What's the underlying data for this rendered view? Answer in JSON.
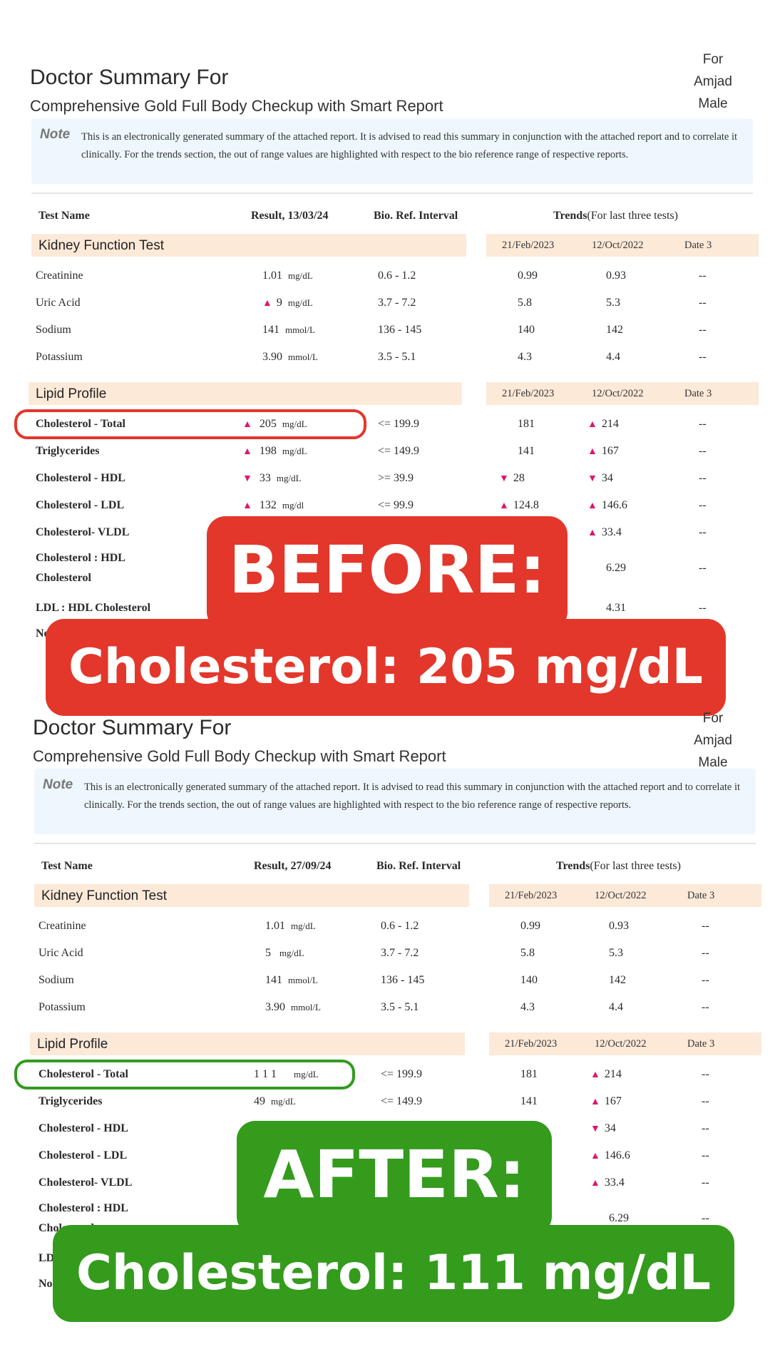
{
  "colors": {
    "before": "#e3372b",
    "after": "#349b1d",
    "flag": "#e0166b",
    "section_bg": "#fde9d8",
    "note_bg": "#eef7fd"
  },
  "before": {
    "title": "Doctor Summary For",
    "subtitle": "Comprehensive Gold Full Body Checkup with Smart Report",
    "patient": {
      "for": "For",
      "name": "Amjad",
      "gender": "Male"
    },
    "note_label": "Note",
    "note_text": "This is an electronically generated summary of the attached report. It is advised to read this summary in conjunction with the attached report and to correlate it clinically. For the trends section, the out of range values are highlighted with respect to the bio reference range of respective reports.",
    "headers": {
      "test_name": "Test Name",
      "result": "Result, 13/03/24",
      "ref": "Bio. Ref. Interval",
      "trends": "Trends",
      "trends_note": "(For last three tests)"
    },
    "kidney": {
      "label": "Kidney Function Test",
      "dates": [
        "21/Feb/2023",
        "12/Oct/2022",
        "Date 3"
      ],
      "rows": [
        {
          "name": "Creatinine",
          "value": "1.01",
          "unit": "mg/dL",
          "ref": "0.6 - 1.2",
          "t1": "0.99",
          "t2": "0.93",
          "t3": "--"
        },
        {
          "name": "Uric Acid",
          "value": "9",
          "unit": "mg/dL",
          "ref": "3.7 - 7.2",
          "t1": "5.8",
          "t2": "5.3",
          "t3": "--"
        },
        {
          "name": "Sodium",
          "value": "141",
          "unit": "mmol/L",
          "ref": "136 - 145",
          "t1": "140",
          "t2": "142",
          "t3": "--"
        },
        {
          "name": "Potassium",
          "value": "3.90",
          "unit": "mmol/L",
          "ref": "3.5 - 5.1",
          "t1": "4.3",
          "t2": "4.4",
          "t3": "--"
        }
      ]
    },
    "lipid": {
      "label": "Lipid Profile",
      "dates": [
        "21/Feb/2023",
        "12/Oct/2022",
        "Date 3"
      ],
      "rows": [
        {
          "name": "Cholesterol - Total",
          "value": "205",
          "unit": "mg/dL",
          "ref": "<= 199.9",
          "t1": "181",
          "t2": "214",
          "t3": "--"
        },
        {
          "name": "Triglycerides",
          "value": "198",
          "unit": "mg/dL",
          "ref": "<= 149.9",
          "t1": "141",
          "t2": "167",
          "t3": "--"
        },
        {
          "name": "Cholesterol - HDL",
          "value": "33",
          "unit": "mg/dL",
          "ref": ">= 39.9",
          "t1": "28",
          "t2": "34",
          "t3": "--"
        },
        {
          "name": "Cholesterol - LDL",
          "value": "132",
          "unit": "mg/dl",
          "ref": "<= 99.9",
          "t1": "124.8",
          "t2": "146.6",
          "t3": "--"
        },
        {
          "name": "Cholesterol- VLDL",
          "t2": "33.4",
          "t3": "--"
        },
        {
          "name_line1": "Cholesterol : HDL",
          "name_line2": "Cholesterol",
          "t2": "6.29",
          "t3": "--"
        },
        {
          "name": "LDL : HDL Cholesterol",
          "t2": "4.31",
          "t3": "--"
        },
        {
          "name": "No"
        }
      ]
    },
    "badge_top": "BEFORE:",
    "badge_bottom": "Cholesterol: 205 mg/dL"
  },
  "after": {
    "title": "Doctor Summary For",
    "subtitle": "Comprehensive Gold Full Body Checkup with Smart Report",
    "patient": {
      "for": "For",
      "name": "Amjad",
      "gender": "Male"
    },
    "note_label": "Note",
    "note_text": "This is an electronically generated summary of the attached report. It is advised to read this summary in conjunction with the attached report and to correlate it clinically. For the trends section, the out of range values are highlighted with respect to the bio reference range of respective reports.",
    "headers": {
      "test_name": "Test Name",
      "result": "Result, 27/09/24",
      "ref": "Bio. Ref. Interval",
      "trends": "Trends",
      "trends_note": "(For last three tests)"
    },
    "kidney": {
      "label": "Kidney Function Test",
      "dates": [
        "21/Feb/2023",
        "12/Oct/2022",
        "Date 3"
      ],
      "rows": [
        {
          "name": "Creatinine",
          "value": "1.01",
          "unit": "mg/dL",
          "ref": "0.6 - 1.2",
          "t1": "0.99",
          "t2": "0.93",
          "t3": "--"
        },
        {
          "name": "Uric Acid",
          "value": "5",
          "unit": "mg/dL",
          "ref": "3.7 - 7.2",
          "t1": "5.8",
          "t2": "5.3",
          "t3": "--"
        },
        {
          "name": "Sodium",
          "value": "141",
          "unit": "mmol/L",
          "ref": "136 - 145",
          "t1": "140",
          "t2": "142",
          "t3": "--"
        },
        {
          "name": "Potassium",
          "value": "3.90",
          "unit": "mmol/L",
          "ref": "3.5 - 5.1",
          "t1": "4.3",
          "t2": "4.4",
          "t3": "--"
        }
      ]
    },
    "lipid": {
      "label": "Lipid Profile",
      "dates": [
        "21/Feb/2023",
        "12/Oct/2022",
        "Date 3"
      ],
      "rows": [
        {
          "name": "Cholesterol - Total",
          "value": "1 1 1",
          "unit": "mg/dL",
          "ref": "<= 199.9",
          "t1": "181",
          "t2": "214",
          "t3": "--"
        },
        {
          "name": "Triglycerides",
          "value": "49",
          "unit": "mg/dL",
          "ref": "<= 149.9",
          "t1": "141",
          "t2": "167",
          "t3": "--"
        },
        {
          "name": "Cholesterol - HDL",
          "t2": "34",
          "t3": "--"
        },
        {
          "name": "Cholesterol - LDL",
          "t2": "146.6",
          "t3": "--"
        },
        {
          "name": "Cholesterol- VLDL",
          "t2": "33.4",
          "t3": "--"
        },
        {
          "name_line1": "Cholesterol : HDL",
          "name_line2": "Cholesterol",
          "t2": "6.29",
          "t3": "--"
        },
        {
          "name": "LD"
        },
        {
          "name": "No"
        }
      ]
    },
    "badge_top": "AFTER:",
    "badge_bottom": "Cholesterol: 111 mg/dL"
  }
}
